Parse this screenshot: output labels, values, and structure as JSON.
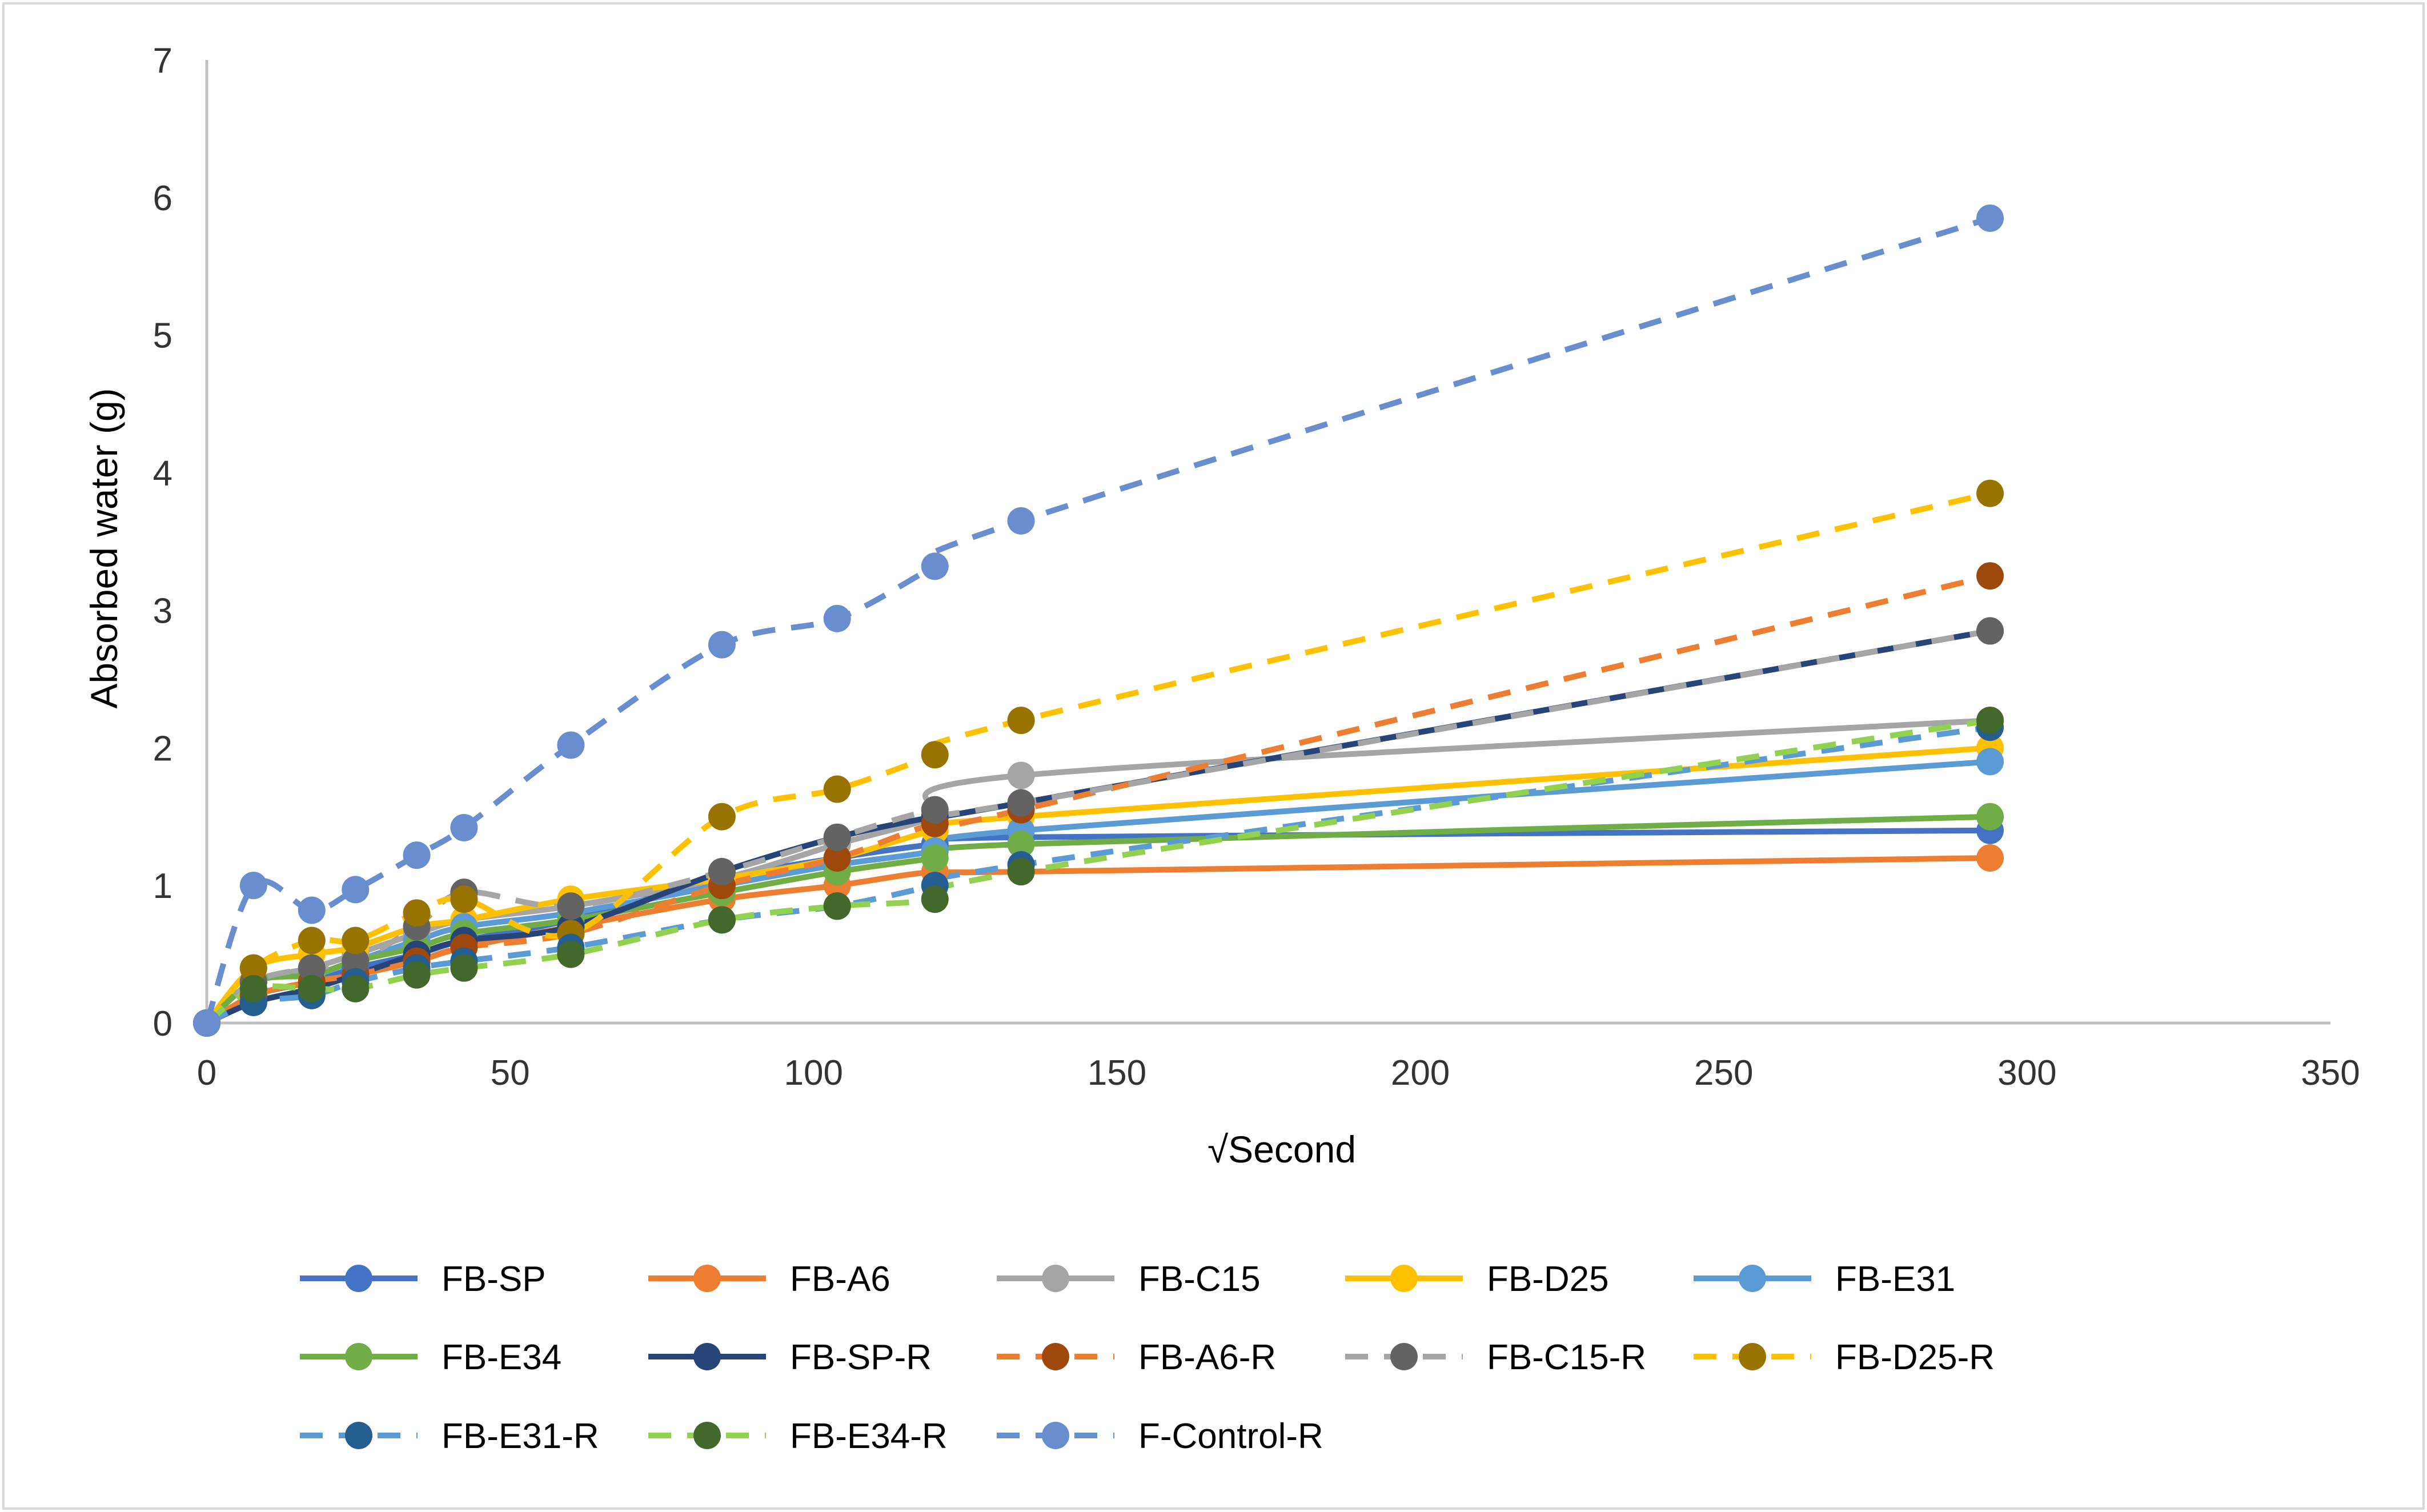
{
  "chart_data": {
    "type": "line",
    "title": "",
    "xlabel": "√Second",
    "ylabel": "Absorbed water (g)",
    "xlim": [
      0,
      350
    ],
    "ylim": [
      0,
      7
    ],
    "xticks": [
      0,
      50,
      100,
      150,
      200,
      250,
      300,
      350
    ],
    "yticks": [
      0,
      1,
      2,
      3,
      4,
      5,
      6,
      7
    ],
    "grid": false,
    "legend_position": "bottom",
    "x": [
      0,
      7.7,
      17.3,
      24.5,
      34.6,
      42.4,
      60,
      84.9,
      103.9,
      120,
      134.2,
      293.9
    ],
    "series": [
      {
        "name": "FB-SP",
        "color": "#4472C4",
        "marker_color": "#4472C4",
        "dashed": false,
        "values": [
          0,
          0.2,
          0.3,
          0.4,
          0.5,
          0.6,
          0.75,
          1.05,
          1.2,
          1.3,
          1.35,
          1.4
        ]
      },
      {
        "name": "FB-A6",
        "color": "#ED7D31",
        "marker_color": "#ED7D31",
        "dashed": false,
        "values": [
          0,
          0.2,
          0.3,
          0.35,
          0.45,
          0.55,
          0.7,
          0.9,
          1.0,
          1.1,
          1.1,
          1.2
        ]
      },
      {
        "name": "FB-C15",
        "color": "#A5A5A5",
        "marker_color": "#A5A5A5",
        "dashed": false,
        "values": [
          0,
          0.3,
          0.4,
          0.5,
          0.65,
          0.75,
          0.85,
          1.05,
          1.3,
          1.5,
          1.8,
          2.2
        ]
      },
      {
        "name": "FB-D25",
        "color": "#FFC000",
        "marker_color": "#FFC000",
        "dashed": false,
        "values": [
          0,
          0.4,
          0.5,
          0.55,
          0.7,
          0.75,
          0.9,
          1.05,
          1.2,
          1.4,
          1.5,
          2.0
        ]
      },
      {
        "name": "FB-E31",
        "color": "#5B9BD5",
        "marker_color": "#5B9BD5",
        "dashed": false,
        "values": [
          0,
          0.3,
          0.35,
          0.45,
          0.6,
          0.7,
          0.8,
          1.0,
          1.15,
          1.25,
          1.4,
          1.9
        ]
      },
      {
        "name": "FB-E34",
        "color": "#70AD47",
        "marker_color": "#70AD47",
        "dashed": false,
        "values": [
          0,
          0.3,
          0.35,
          0.45,
          0.55,
          0.65,
          0.75,
          0.95,
          1.1,
          1.2,
          1.3,
          1.5
        ]
      },
      {
        "name": "FB-SP-R",
        "color": "#264478",
        "marker_color": "#264478",
        "dashed": false,
        "values": [
          0,
          0.15,
          0.25,
          0.35,
          0.5,
          0.6,
          0.7,
          1.1,
          1.35,
          1.5,
          1.6,
          2.85
        ]
      },
      {
        "name": "FB-A6-R",
        "color": "#ED7D31",
        "marker_color": "#9E480E",
        "dashed": true,
        "values": [
          0,
          0.2,
          0.3,
          0.35,
          0.45,
          0.55,
          0.65,
          1.0,
          1.2,
          1.45,
          1.55,
          3.25
        ]
      },
      {
        "name": "FB-C15-R",
        "color": "#A5A5A5",
        "marker_color": "#636363",
        "dashed": true,
        "values": [
          0,
          0.3,
          0.4,
          0.45,
          0.7,
          0.95,
          0.85,
          1.1,
          1.35,
          1.55,
          1.6,
          2.85
        ]
      },
      {
        "name": "FB-D25-R",
        "color": "#FFC000",
        "marker_color": "#997300",
        "dashed": true,
        "values": [
          0,
          0.4,
          0.6,
          0.6,
          0.8,
          0.9,
          0.65,
          1.5,
          1.7,
          1.95,
          2.2,
          3.85
        ]
      },
      {
        "name": "FB-E31-R",
        "color": "#5B9BD5",
        "marker_color": "#255E91",
        "dashed": true,
        "values": [
          0,
          0.15,
          0.2,
          0.3,
          0.4,
          0.45,
          0.55,
          0.75,
          0.85,
          1.0,
          1.15,
          2.15
        ]
      },
      {
        "name": "FB-E34-R",
        "color": "#92D050",
        "marker_color": "#43682B",
        "dashed": true,
        "values": [
          0,
          0.25,
          0.25,
          0.25,
          0.35,
          0.4,
          0.5,
          0.75,
          0.85,
          0.9,
          1.1,
          2.2
        ]
      },
      {
        "name": "F-Control-R",
        "color": "#698ED0",
        "marker_color": "#698ED0",
        "dashed": true,
        "values": [
          0,
          1.0,
          0.82,
          0.97,
          1.22,
          1.42,
          2.02,
          2.75,
          2.94,
          3.32,
          3.65,
          5.85
        ]
      }
    ]
  }
}
